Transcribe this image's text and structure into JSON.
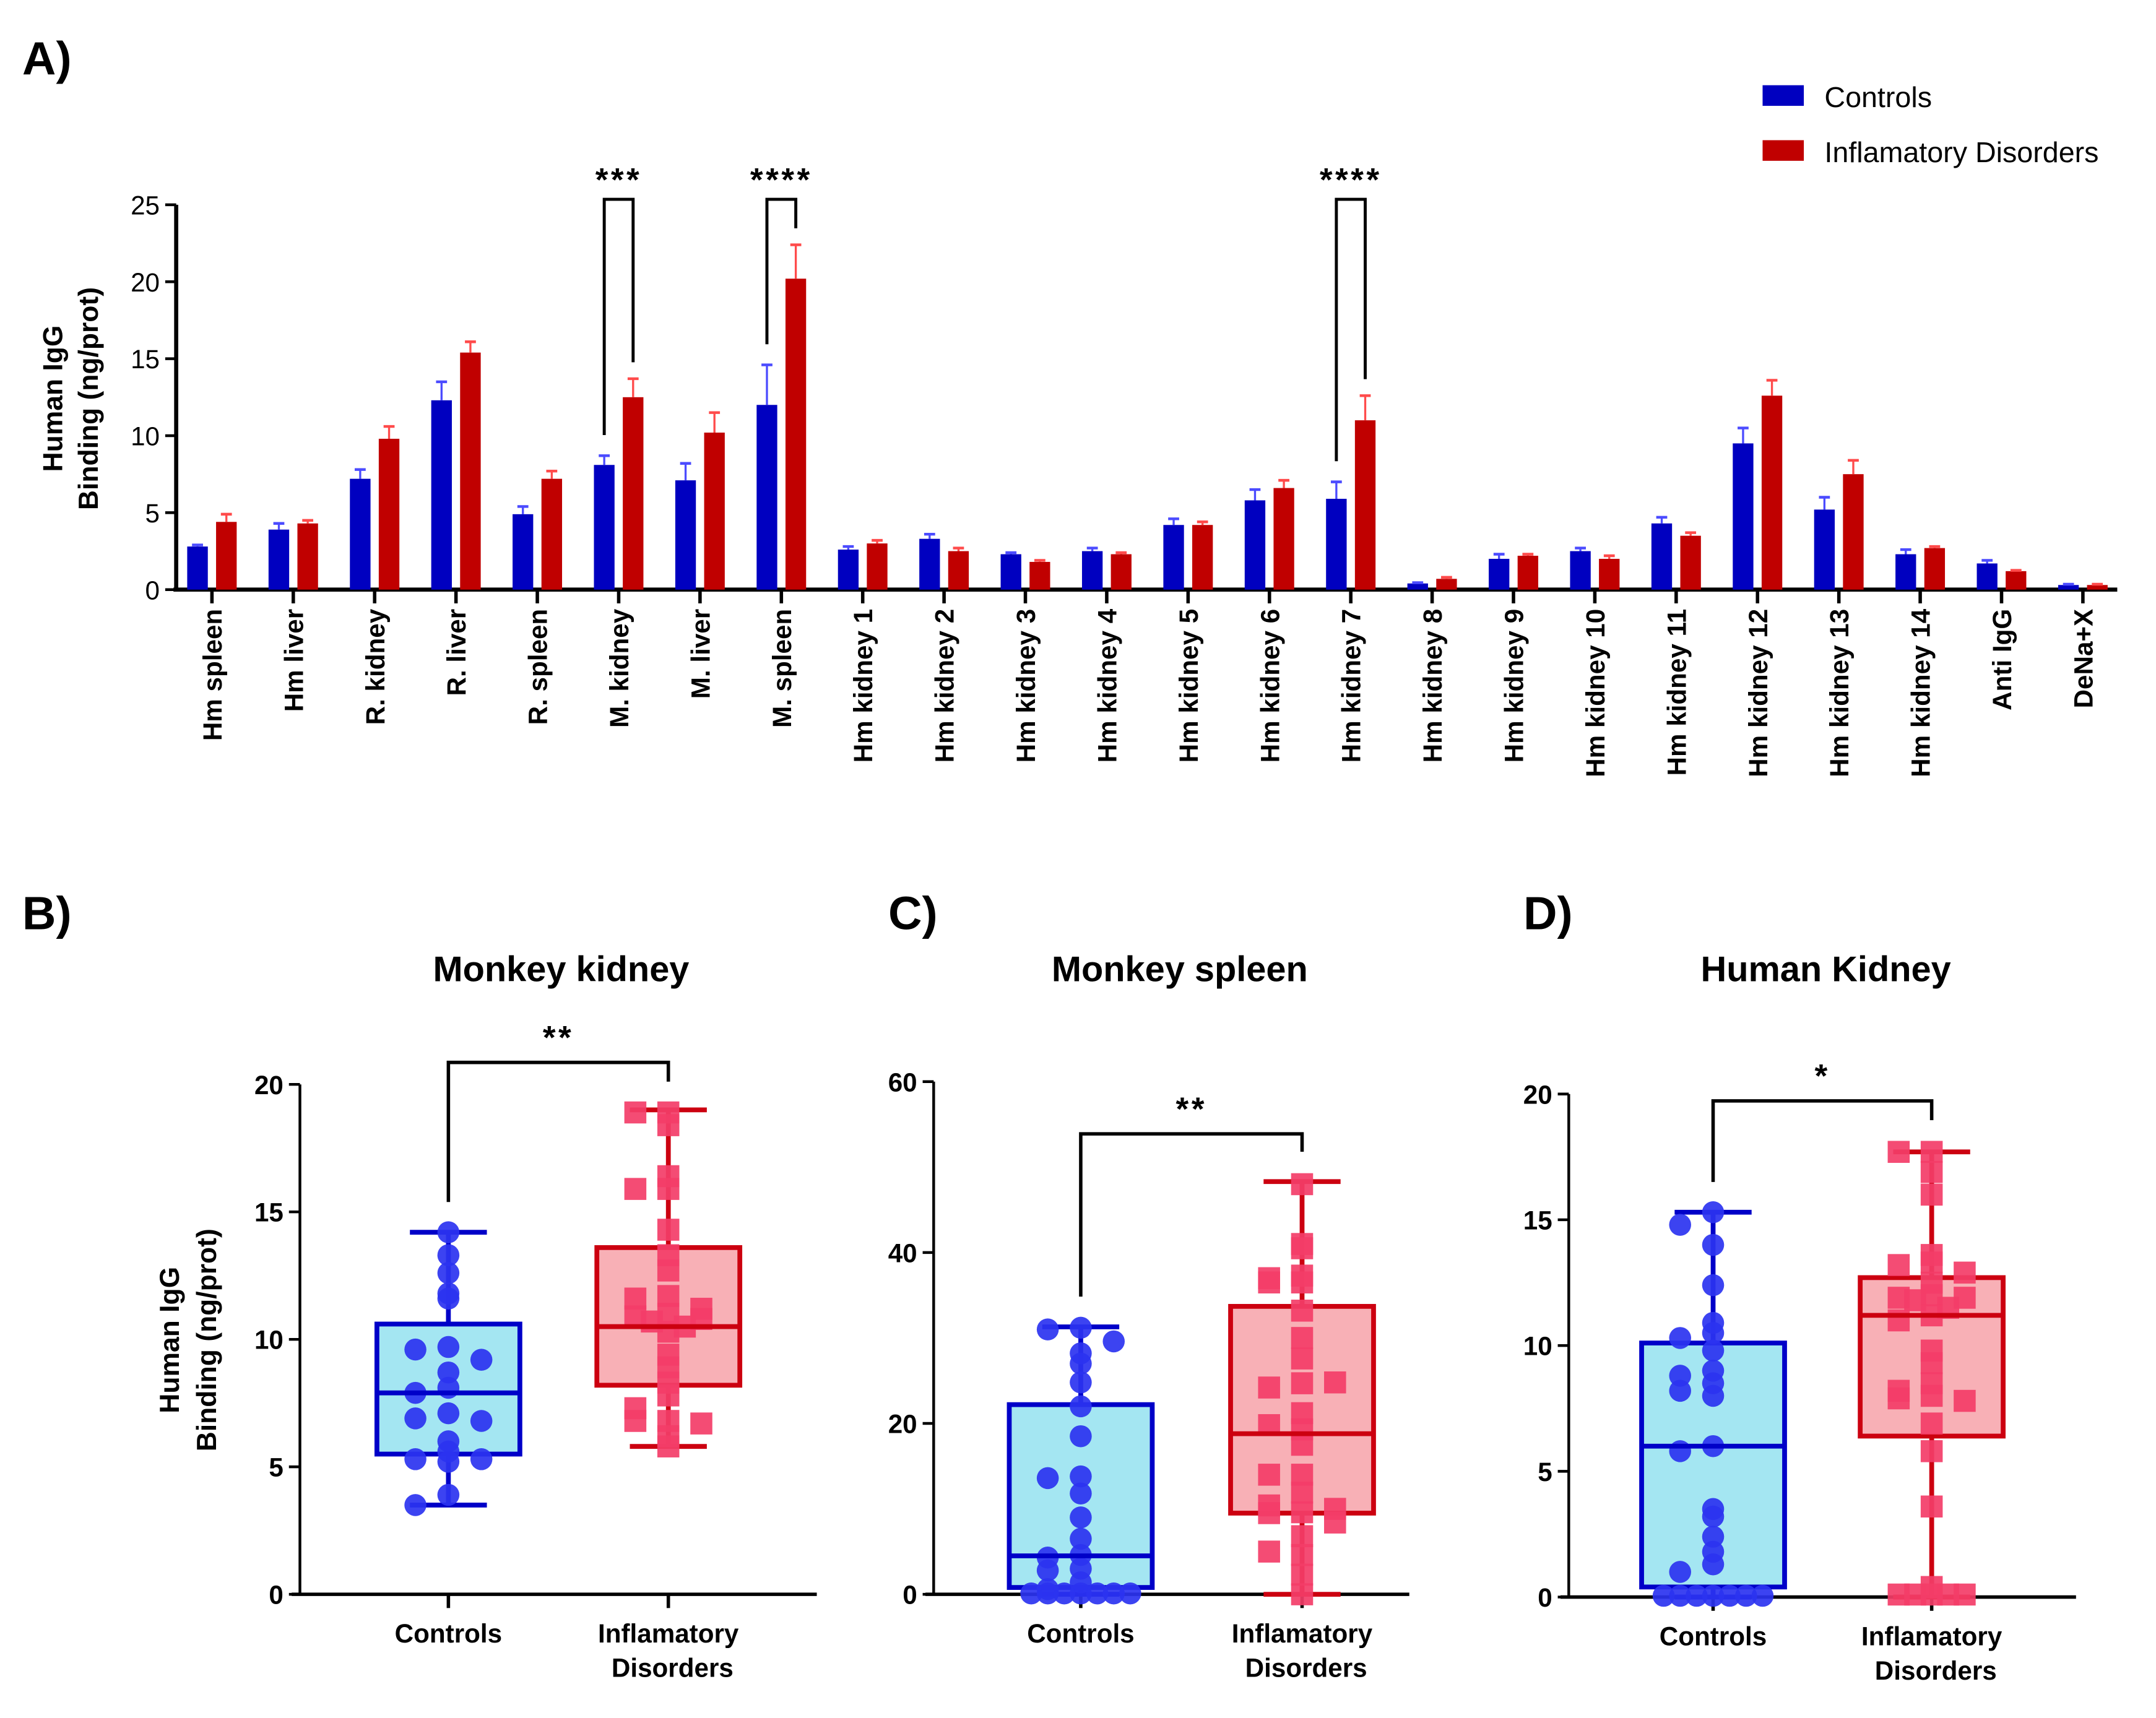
{
  "chart_data": [
    {
      "id": "A",
      "panel_label": "A)",
      "type": "bar",
      "ylabel_line1": "Human IgG",
      "ylabel_line2": "Binding (ng/prot)",
      "ylim": [
        0,
        25
      ],
      "yticks": [
        0,
        5,
        10,
        15,
        20,
        25
      ],
      "categories": [
        "Hm spleen",
        "Hm liver",
        "R. kidney",
        "R. liver",
        "R. spleen",
        "M. kidney",
        "M. liver",
        "M. spleen",
        "Hm kidney 1",
        "Hm kidney 2",
        "Hm kidney 3",
        "Hm kidney 4",
        "Hm kidney 5",
        "Hm kidney 6",
        "Hm kidney 7",
        "Hm kidney 8",
        "Hm kidney 9",
        "Hm kidney 10",
        "Hm kidney 11",
        "Hm kidney 12",
        "Hm kidney 13",
        "Hm kidney 14",
        "Anti IgG",
        "DeNa+X"
      ],
      "series": [
        {
          "name": "Controls",
          "color": "#0000c0",
          "errcolor": "#4b4bff",
          "values": [
            2.8,
            3.9,
            7.2,
            12.3,
            4.9,
            8.1,
            7.1,
            12.0,
            2.6,
            3.3,
            2.3,
            2.5,
            4.2,
            5.8,
            5.9,
            0.4,
            2.0,
            2.5,
            4.3,
            9.5,
            5.2,
            2.3,
            1.7,
            0.3
          ],
          "errors": [
            0.1,
            0.4,
            0.6,
            1.2,
            0.5,
            0.6,
            1.1,
            2.6,
            0.2,
            0.3,
            0.1,
            0.2,
            0.4,
            0.7,
            1.1,
            0.05,
            0.3,
            0.2,
            0.4,
            1.0,
            0.8,
            0.3,
            0.2,
            0.05
          ]
        },
        {
          "name": "Inflamatory Disorders",
          "color": "#c00000",
          "errcolor": "#ff4b4b",
          "values": [
            4.4,
            4.3,
            9.8,
            15.4,
            7.2,
            12.5,
            10.2,
            20.2,
            3.0,
            2.5,
            1.8,
            2.3,
            4.2,
            6.6,
            11.0,
            0.7,
            2.2,
            2.0,
            3.5,
            12.6,
            7.5,
            2.7,
            1.2,
            0.3
          ],
          "errors": [
            0.5,
            0.2,
            0.8,
            0.7,
            0.5,
            1.2,
            1.3,
            2.2,
            0.2,
            0.2,
            0.1,
            0.1,
            0.2,
            0.5,
            1.6,
            0.1,
            0.1,
            0.2,
            0.2,
            1.0,
            0.9,
            0.1,
            0.05,
            0.05
          ]
        }
      ],
      "significance": [
        {
          "category": "M. kidney",
          "label": "***"
        },
        {
          "category": "M. spleen",
          "label": "****"
        },
        {
          "category": "Hm kidney 7",
          "label": "****"
        }
      ],
      "legend": {
        "position": "top-right",
        "entries": [
          "Controls",
          "Inflamatory Disorders"
        ]
      }
    },
    {
      "id": "B",
      "panel_label": "B)",
      "type": "box",
      "title": "Monkey kidney",
      "ylabel_line1": "Human IgG",
      "ylabel_line2": "Binding (ng/prot)",
      "ylim": [
        0,
        20
      ],
      "yticks": [
        0,
        5,
        10,
        15,
        20
      ],
      "categories": [
        "Controls",
        "Inflamatory Disorders"
      ],
      "significance": "**",
      "groups": [
        {
          "name": "Controls",
          "min": 3.5,
          "q1": 5.5,
          "median": 7.9,
          "q3": 10.6,
          "max": 14.2,
          "points": [
            14.2,
            13.3,
            12.6,
            11.8,
            11.6,
            9.7,
            9.6,
            9.2,
            8.7,
            8.1,
            7.9,
            7.1,
            6.9,
            6.8,
            6.0,
            5.6,
            5.3,
            5.3,
            5.2,
            3.9,
            3.5
          ]
        },
        {
          "name": "Inflamatory Disorders",
          "min": 5.8,
          "q1": 8.2,
          "median": 10.5,
          "q3": 13.6,
          "max": 19.0,
          "points": [
            18.9,
            18.9,
            18.4,
            16.4,
            15.9,
            15.9,
            14.3,
            13.3,
            12.7,
            11.7,
            11.6,
            11.2,
            11.0,
            10.9,
            10.8,
            10.7,
            10.5,
            10.3,
            9.4,
            8.9,
            8.3,
            7.8,
            7.3,
            6.8,
            6.8,
            6.7,
            6.2,
            5.8
          ]
        }
      ]
    },
    {
      "id": "C",
      "panel_label": "C)",
      "type": "box",
      "title": "Monkey spleen",
      "ylim": [
        0,
        60
      ],
      "yticks": [
        0,
        20,
        40,
        60
      ],
      "categories": [
        "Controls",
        "Inflamatory Disorders"
      ],
      "significance": "**",
      "groups": [
        {
          "name": "Controls",
          "min": 0,
          "q1": 0.8,
          "median": 4.5,
          "q3": 22.2,
          "max": 31.3,
          "points": [
            31.2,
            31.0,
            29.6,
            28.2,
            27.0,
            24.8,
            22.0,
            18.5,
            13.8,
            13.6,
            11.8,
            9.0,
            6.5,
            4.6,
            4.3,
            3.0,
            2.8,
            1.4,
            0.6,
            0.1,
            0.1,
            0.1,
            0.1,
            0.1,
            0.1,
            0.1
          ]
        },
        {
          "name": "Inflamatory Disorders",
          "min": 0,
          "q1": 9.5,
          "median": 18.8,
          "q3": 33.7,
          "max": 48.3,
          "points": [
            48.0,
            41.0,
            40.5,
            37.3,
            36.5,
            36.5,
            37.0,
            33.2,
            30.0,
            27.6,
            24.7,
            24.2,
            24.8,
            21.2,
            19.8,
            19.3,
            17.5,
            14.0,
            14.0,
            11.9,
            10.4,
            10.0,
            9.6,
            9.5,
            8.4,
            6.8,
            4.6,
            5.0,
            2.3,
            0.0
          ]
        }
      ]
    },
    {
      "id": "D",
      "panel_label": "D)",
      "type": "box",
      "title": "Human Kidney",
      "ylim": [
        0,
        20
      ],
      "yticks": [
        0,
        5,
        10,
        15,
        20
      ],
      "categories": [
        "Controls",
        "Inflamatory Disorders"
      ],
      "significance": "*",
      "groups": [
        {
          "name": "Controls",
          "min": 0,
          "q1": 0.4,
          "median": 6.0,
          "q3": 10.1,
          "max": 15.3,
          "points": [
            15.3,
            14.8,
            14.0,
            12.4,
            10.9,
            10.5,
            10.3,
            9.8,
            9.0,
            8.8,
            8.5,
            8.2,
            8.0,
            6.0,
            5.8,
            3.5,
            3.2,
            2.4,
            1.8,
            1.3,
            1.0,
            0.05,
            0.05,
            0.05,
            0.05,
            0.05,
            0.05,
            0.05
          ]
        },
        {
          "name": "Inflamatory Disorders",
          "min": 0,
          "q1": 6.4,
          "median": 11.2,
          "q3": 12.7,
          "max": 17.7,
          "points": [
            17.7,
            17.7,
            16.9,
            16.0,
            13.6,
            13.3,
            13.2,
            12.9,
            12.5,
            12.0,
            11.9,
            11.9,
            11.8,
            11.5,
            11.2,
            11.0,
            9.8,
            9.3,
            8.5,
            8.2,
            8.0,
            7.9,
            7.8,
            6.9,
            5.8,
            3.6,
            0.4,
            0.1,
            0.1,
            0.1,
            0.1,
            0.1
          ]
        }
      ]
    }
  ]
}
